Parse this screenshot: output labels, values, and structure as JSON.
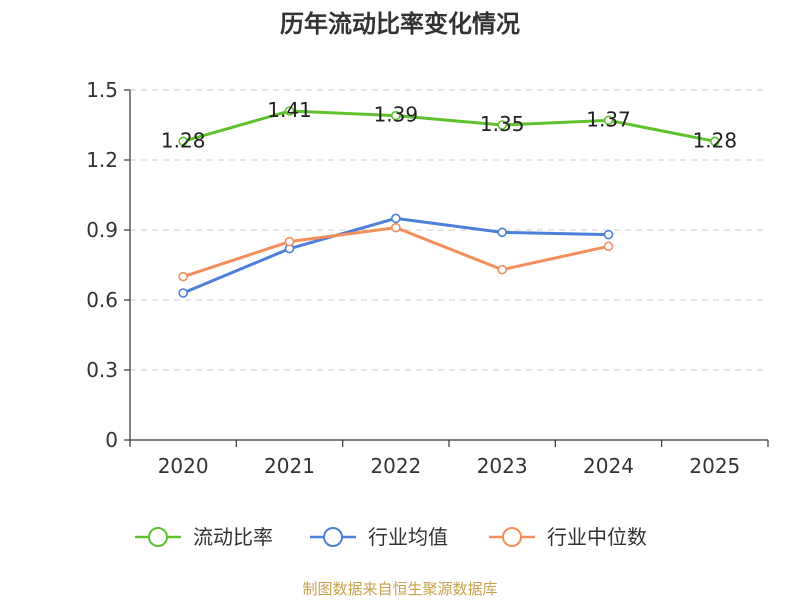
{
  "chart_data": {
    "type": "line",
    "title": "历年流动比率变化情况",
    "categories": [
      "2020",
      "2021",
      "2022",
      "2023",
      "2024",
      "2025"
    ],
    "ylim": [
      0,
      1.5
    ],
    "yticks": [
      0,
      0.3,
      0.6,
      0.9,
      1.2,
      1.5
    ],
    "ytick_labels": [
      "0",
      "0.3",
      "0.6",
      "0.9",
      "1.2",
      "1.5"
    ],
    "grid": true,
    "legend_position": "bottom",
    "series": [
      {
        "name": "流动比率",
        "color": "#5fc12e",
        "values": [
          1.28,
          1.41,
          1.39,
          1.35,
          1.37,
          1.28
        ],
        "labels": [
          "1.28",
          "1.41",
          "1.39",
          "1.35",
          "1.37",
          "1.28"
        ],
        "show_labels": true
      },
      {
        "name": "行业均值",
        "color": "#4e7fd9",
        "values": [
          0.63,
          0.82,
          0.95,
          0.89,
          0.88,
          null
        ],
        "show_labels": false
      },
      {
        "name": "行业中位数",
        "color": "#f28f5c",
        "values": [
          0.7,
          0.85,
          0.91,
          0.73,
          0.83,
          null
        ],
        "show_labels": false
      }
    ]
  },
  "footer": {
    "source_text": "制图数据来自恒生聚源数据库"
  }
}
